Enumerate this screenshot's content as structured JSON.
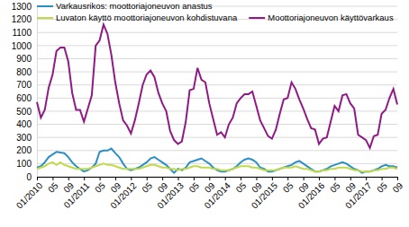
{
  "chart_data": {
    "type": "line",
    "categories": [
      "01/2010",
      null,
      null,
      null,
      "05",
      null,
      null,
      null,
      "09",
      null,
      null,
      null,
      "01/2011",
      null,
      null,
      null,
      "05",
      null,
      null,
      null,
      "09",
      null,
      null,
      null,
      "01/2012",
      null,
      null,
      null,
      "05",
      null,
      null,
      null,
      "09",
      null,
      null,
      null,
      "01/2013",
      null,
      null,
      null,
      "05",
      null,
      null,
      null,
      "09",
      null,
      null,
      null,
      "01/2014",
      null,
      null,
      null,
      "05",
      null,
      null,
      null,
      "09",
      null,
      null,
      null,
      "01/2015",
      null,
      null,
      null,
      "05",
      null,
      null,
      null,
      "09",
      null,
      null,
      null,
      "01/2016",
      null,
      null,
      null,
      "05",
      null,
      null,
      null,
      "09",
      null,
      null,
      null,
      "01/2017",
      null,
      null,
      null,
      "05",
      null,
      null,
      null,
      "09"
    ],
    "series": [
      {
        "name": "Varkausrikos: moottoriajoneuvon anastus",
        "color": "#2b8fc7",
        "values": [
          70,
          80,
          110,
          150,
          170,
          190,
          185,
          180,
          150,
          110,
          80,
          60,
          40,
          50,
          70,
          100,
          190,
          200,
          200,
          215,
          180,
          150,
          100,
          60,
          50,
          60,
          70,
          90,
          110,
          140,
          150,
          130,
          110,
          90,
          60,
          30,
          60,
          50,
          70,
          110,
          120,
          130,
          140,
          120,
          100,
          70,
          50,
          40,
          40,
          50,
          60,
          80,
          110,
          130,
          140,
          130,
          110,
          70,
          60,
          40,
          40,
          50,
          60,
          70,
          80,
          90,
          110,
          120,
          100,
          80,
          60,
          40,
          40,
          50,
          60,
          80,
          90,
          100,
          110,
          100,
          80,
          60,
          50,
          30,
          40,
          40,
          50,
          60,
          80,
          90,
          80,
          80,
          70
        ]
      },
      {
        "name": "Luvaton käyttö moottoriajoneuvon kohdistuvana",
        "color": "#c2d94a",
        "values": [
          60,
          70,
          80,
          100,
          110,
          90,
          110,
          90,
          80,
          70,
          60,
          60,
          60,
          60,
          70,
          80,
          90,
          100,
          90,
          90,
          80,
          70,
          60,
          60,
          60,
          60,
          60,
          70,
          80,
          90,
          90,
          80,
          70,
          70,
          60,
          60,
          50,
          60,
          60,
          70,
          80,
          80,
          70,
          70,
          70,
          60,
          60,
          50,
          50,
          50,
          60,
          70,
          80,
          80,
          80,
          70,
          70,
          60,
          50,
          50,
          50,
          50,
          60,
          70,
          70,
          70,
          80,
          70,
          60,
          60,
          50,
          40,
          40,
          50,
          50,
          60,
          60,
          70,
          70,
          70,
          60,
          50,
          50,
          40,
          40,
          40,
          50,
          50,
          60,
          60,
          70,
          70,
          60
        ]
      },
      {
        "name": "Moottoriajoneuvon käyttövarkaus",
        "color": "#8f1a86",
        "values": [
          570,
          450,
          510,
          680,
          780,
          960,
          985,
          985,
          880,
          640,
          510,
          510,
          420,
          520,
          620,
          1000,
          1040,
          1160,
          1090,
          930,
          720,
          560,
          430,
          390,
          330,
          430,
          560,
          700,
          780,
          810,
          760,
          640,
          560,
          500,
          350,
          280,
          250,
          270,
          420,
          660,
          670,
          830,
          740,
          720,
          560,
          440,
          320,
          340,
          300,
          400,
          450,
          560,
          600,
          630,
          630,
          650,
          540,
          430,
          370,
          310,
          290,
          360,
          480,
          590,
          600,
          720,
          670,
          590,
          520,
          440,
          370,
          360,
          250,
          290,
          300,
          420,
          540,
          500,
          620,
          630,
          560,
          520,
          320,
          300,
          280,
          220,
          310,
          320,
          480,
          510,
          600,
          670,
          550
        ]
      }
    ],
    "ylim": [
      0,
      1300
    ],
    "yticks": [
      0,
      100,
      200,
      300,
      400,
      500,
      600,
      700,
      800,
      900,
      1000,
      1100,
      1200,
      1300
    ],
    "grid": true,
    "legend": "top"
  }
}
